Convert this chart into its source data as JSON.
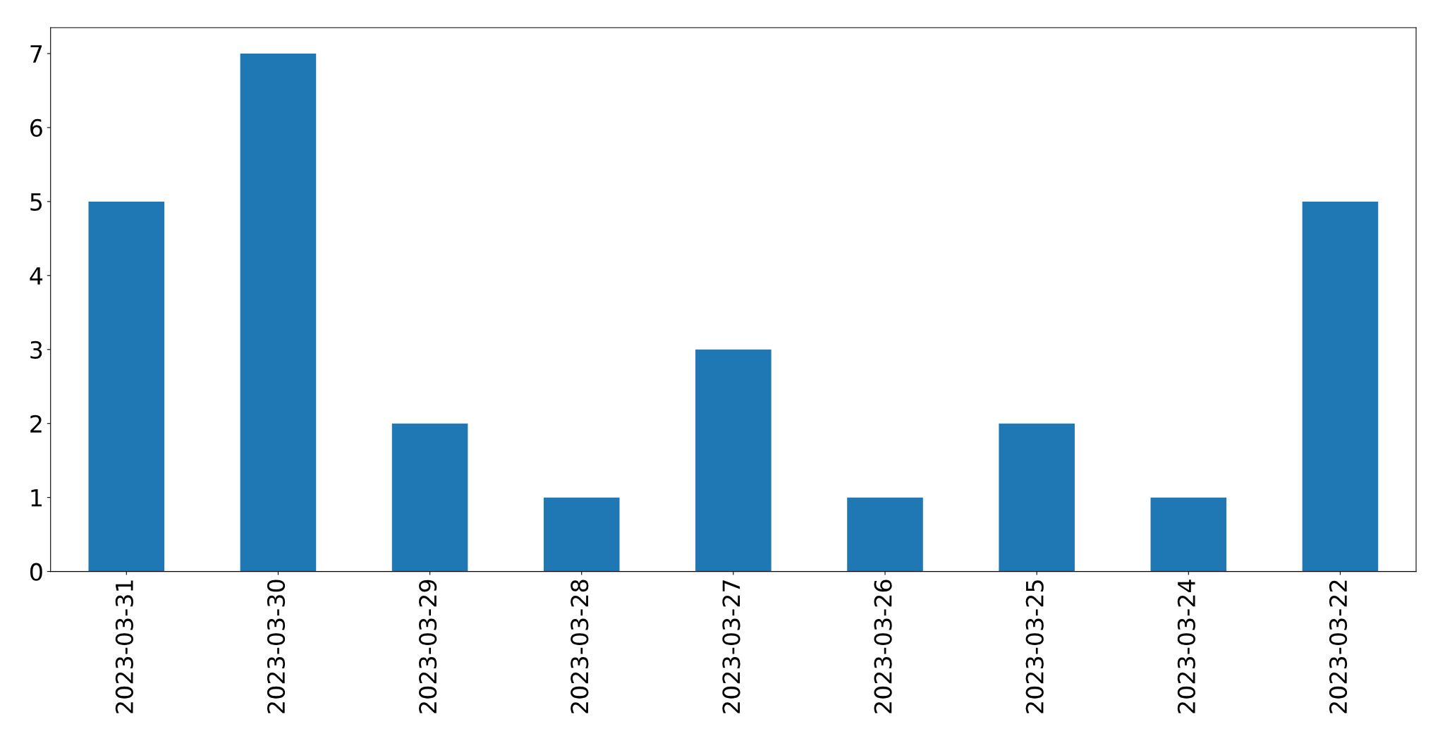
{
  "chart_data": {
    "type": "bar",
    "categories": [
      "2023-03-31",
      "2023-03-30",
      "2023-03-29",
      "2023-03-28",
      "2023-03-27",
      "2023-03-26",
      "2023-03-25",
      "2023-03-24",
      "2023-03-22"
    ],
    "values": [
      5,
      7,
      2,
      1,
      3,
      1,
      2,
      1,
      5
    ],
    "color": "#1f77b4",
    "ylim": [
      0,
      7.35
    ],
    "yticks": [
      0,
      1,
      2,
      3,
      4,
      5,
      6,
      7
    ],
    "grid": false
  }
}
